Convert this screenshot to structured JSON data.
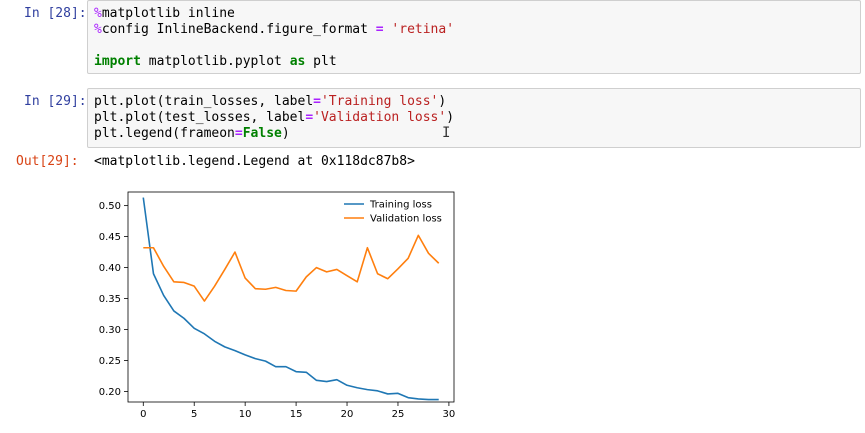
{
  "cells": [
    {
      "prompt": "In [28]:",
      "lines": [
        [
          {
            "t": "%",
            "c": "mg"
          },
          {
            "t": "matplotlib inline",
            "c": ""
          }
        ],
        [
          {
            "t": "%",
            "c": "mg"
          },
          {
            "t": "config InlineBackend.figure_format ",
            "c": ""
          },
          {
            "t": "=",
            "c": "op"
          },
          {
            "t": " ",
            "c": ""
          },
          {
            "t": "'retina'",
            "c": "str"
          }
        ],
        [],
        [
          {
            "t": "import",
            "c": "kw"
          },
          {
            "t": " matplotlib.pyplot ",
            "c": ""
          },
          {
            "t": "as",
            "c": "kw"
          },
          {
            "t": " plt",
            "c": ""
          }
        ]
      ]
    },
    {
      "prompt": "In [29]:",
      "lines": [
        [
          {
            "t": "plt.plot(train_losses, label",
            "c": ""
          },
          {
            "t": "=",
            "c": "op"
          },
          {
            "t": "'Training loss'",
            "c": "str"
          },
          {
            "t": ")",
            "c": ""
          }
        ],
        [
          {
            "t": "plt.plot(test_losses, label",
            "c": ""
          },
          {
            "t": "=",
            "c": "op"
          },
          {
            "t": "'Validation loss'",
            "c": "str"
          },
          {
            "t": ")",
            "c": ""
          }
        ],
        [
          {
            "t": "plt.legend(frameon",
            "c": ""
          },
          {
            "t": "=",
            "c": "op"
          },
          {
            "t": "False",
            "c": "kw"
          },
          {
            "t": ")",
            "c": ""
          }
        ]
      ]
    }
  ],
  "output": {
    "prompt": "Out[29]:",
    "text": "<matplotlib.legend.Legend at 0x118dc87b8>"
  },
  "colors": {
    "in_prompt": "#303f9f",
    "out_prompt": "#d84315",
    "train": "#1f77b4",
    "val": "#ff7f0e"
  },
  "chart_data": {
    "type": "line",
    "x": [
      0,
      1,
      2,
      3,
      4,
      5,
      6,
      7,
      8,
      9,
      10,
      11,
      12,
      13,
      14,
      15,
      16,
      17,
      18,
      19,
      20,
      21,
      22,
      23,
      24,
      25,
      26,
      27,
      28,
      29
    ],
    "xlim": [
      -1.5,
      30.5
    ],
    "ylim": [
      0.183,
      0.522
    ],
    "xticks": [
      0,
      5,
      10,
      15,
      20,
      25,
      30
    ],
    "yticks": [
      0.2,
      0.25,
      0.3,
      0.35,
      0.4,
      0.45,
      0.5
    ],
    "ytick_labels": [
      "0.20",
      "0.25",
      "0.30",
      "0.35",
      "0.40",
      "0.45",
      "0.50"
    ],
    "legend_position": "top-right",
    "series": [
      {
        "name": "Training loss",
        "color": "#1f77b4",
        "values": [
          0.513,
          0.39,
          0.355,
          0.33,
          0.318,
          0.302,
          0.293,
          0.281,
          0.272,
          0.266,
          0.259,
          0.253,
          0.249,
          0.24,
          0.24,
          0.232,
          0.231,
          0.218,
          0.216,
          0.219,
          0.21,
          0.206,
          0.203,
          0.201,
          0.196,
          0.197,
          0.19,
          0.188,
          0.187,
          0.187
        ]
      },
      {
        "name": "Validation loss",
        "color": "#ff7f0e",
        "values": [
          0.432,
          0.432,
          0.402,
          0.377,
          0.376,
          0.37,
          0.346,
          0.37,
          0.397,
          0.425,
          0.383,
          0.366,
          0.365,
          0.368,
          0.363,
          0.362,
          0.385,
          0.4,
          0.393,
          0.397,
          0.387,
          0.377,
          0.432,
          0.39,
          0.382,
          0.398,
          0.415,
          0.452,
          0.423,
          0.407
        ]
      }
    ]
  }
}
